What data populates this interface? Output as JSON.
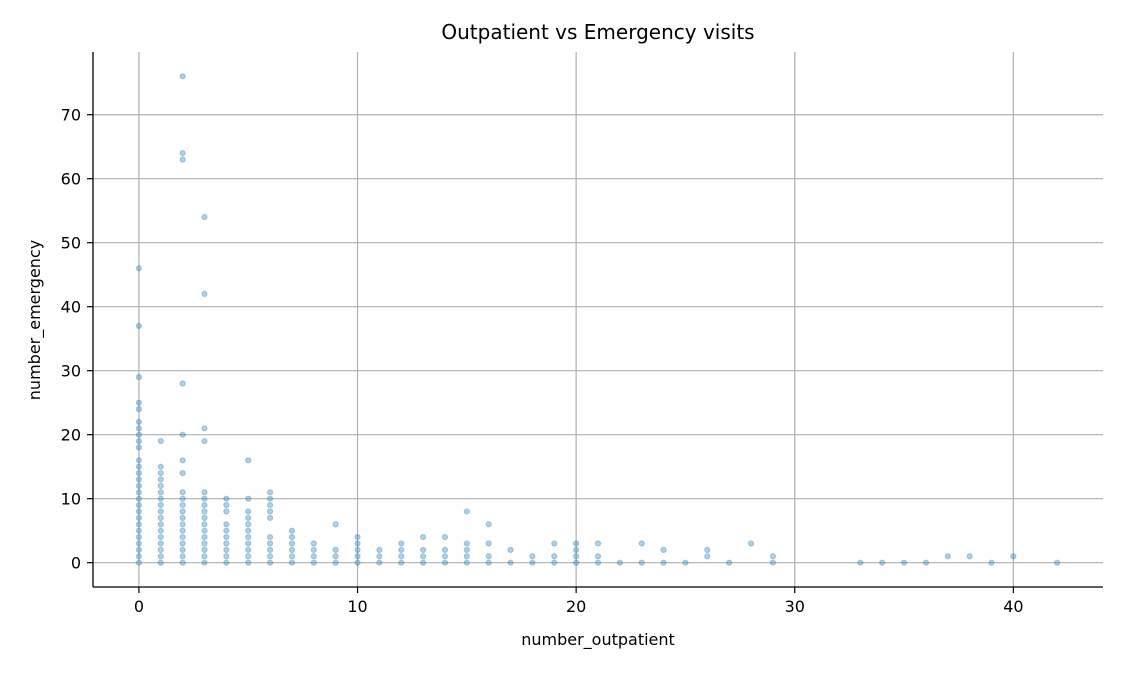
{
  "chart_data": {
    "type": "scatter",
    "title": "Outpatient vs Emergency visits",
    "xlabel": "number_outpatient",
    "ylabel": "number_emergency",
    "xlim": [
      -2.1,
      44.1
    ],
    "ylim": [
      -3.8,
      79.8
    ],
    "xticks": [
      0,
      10,
      20,
      30,
      40
    ],
    "yticks": [
      0,
      10,
      20,
      30,
      40,
      50,
      60,
      70
    ],
    "grid": true,
    "point_color": "#1f77b4",
    "point_alpha": 0.35,
    "series": [
      {
        "points": [
          [
            0,
            0
          ],
          [
            0,
            1
          ],
          [
            0,
            2
          ],
          [
            0,
            3
          ],
          [
            0,
            4
          ],
          [
            0,
            5
          ],
          [
            0,
            6
          ],
          [
            0,
            7
          ],
          [
            0,
            8
          ],
          [
            0,
            9
          ],
          [
            0,
            10
          ],
          [
            0,
            11
          ],
          [
            0,
            12
          ],
          [
            0,
            13
          ],
          [
            0,
            14
          ],
          [
            0,
            15
          ],
          [
            0,
            16
          ],
          [
            0,
            18
          ],
          [
            0,
            19
          ],
          [
            0,
            20
          ],
          [
            0,
            21
          ],
          [
            0,
            22
          ],
          [
            0,
            24
          ],
          [
            0,
            25
          ],
          [
            0,
            29
          ],
          [
            0,
            37
          ],
          [
            0,
            46
          ],
          [
            1,
            0
          ],
          [
            1,
            1
          ],
          [
            1,
            2
          ],
          [
            1,
            3
          ],
          [
            1,
            4
          ],
          [
            1,
            5
          ],
          [
            1,
            6
          ],
          [
            1,
            7
          ],
          [
            1,
            8
          ],
          [
            1,
            9
          ],
          [
            1,
            10
          ],
          [
            1,
            11
          ],
          [
            1,
            12
          ],
          [
            1,
            13
          ],
          [
            1,
            14
          ],
          [
            1,
            15
          ],
          [
            1,
            19
          ],
          [
            2,
            0
          ],
          [
            2,
            1
          ],
          [
            2,
            2
          ],
          [
            2,
            3
          ],
          [
            2,
            4
          ],
          [
            2,
            5
          ],
          [
            2,
            6
          ],
          [
            2,
            7
          ],
          [
            2,
            8
          ],
          [
            2,
            9
          ],
          [
            2,
            10
          ],
          [
            2,
            11
          ],
          [
            2,
            14
          ],
          [
            2,
            16
          ],
          [
            2,
            20
          ],
          [
            2,
            28
          ],
          [
            2,
            63
          ],
          [
            2,
            64
          ],
          [
            2,
            76
          ],
          [
            3,
            0
          ],
          [
            3,
            1
          ],
          [
            3,
            2
          ],
          [
            3,
            3
          ],
          [
            3,
            4
          ],
          [
            3,
            5
          ],
          [
            3,
            6
          ],
          [
            3,
            7
          ],
          [
            3,
            8
          ],
          [
            3,
            9
          ],
          [
            3,
            10
          ],
          [
            3,
            11
          ],
          [
            3,
            19
          ],
          [
            3,
            21
          ],
          [
            3,
            42
          ],
          [
            3,
            54
          ],
          [
            4,
            0
          ],
          [
            4,
            1
          ],
          [
            4,
            2
          ],
          [
            4,
            3
          ],
          [
            4,
            4
          ],
          [
            4,
            5
          ],
          [
            4,
            6
          ],
          [
            4,
            8
          ],
          [
            4,
            9
          ],
          [
            4,
            10
          ],
          [
            5,
            0
          ],
          [
            5,
            1
          ],
          [
            5,
            2
          ],
          [
            5,
            3
          ],
          [
            5,
            4
          ],
          [
            5,
            5
          ],
          [
            5,
            6
          ],
          [
            5,
            7
          ],
          [
            5,
            8
          ],
          [
            5,
            10
          ],
          [
            5,
            16
          ],
          [
            6,
            0
          ],
          [
            6,
            1
          ],
          [
            6,
            2
          ],
          [
            6,
            3
          ],
          [
            6,
            4
          ],
          [
            6,
            7
          ],
          [
            6,
            8
          ],
          [
            6,
            9
          ],
          [
            6,
            10
          ],
          [
            6,
            11
          ],
          [
            7,
            0
          ],
          [
            7,
            1
          ],
          [
            7,
            2
          ],
          [
            7,
            3
          ],
          [
            7,
            4
          ],
          [
            7,
            5
          ],
          [
            8,
            0
          ],
          [
            8,
            1
          ],
          [
            8,
            2
          ],
          [
            8,
            3
          ],
          [
            9,
            0
          ],
          [
            9,
            1
          ],
          [
            9,
            2
          ],
          [
            9,
            6
          ],
          [
            10,
            0
          ],
          [
            10,
            1
          ],
          [
            10,
            2
          ],
          [
            10,
            3
          ],
          [
            10,
            4
          ],
          [
            11,
            0
          ],
          [
            11,
            1
          ],
          [
            11,
            2
          ],
          [
            12,
            0
          ],
          [
            12,
            1
          ],
          [
            12,
            2
          ],
          [
            12,
            3
          ],
          [
            13,
            0
          ],
          [
            13,
            1
          ],
          [
            13,
            2
          ],
          [
            13,
            4
          ],
          [
            14,
            0
          ],
          [
            14,
            1
          ],
          [
            14,
            2
          ],
          [
            14,
            4
          ],
          [
            15,
            0
          ],
          [
            15,
            1
          ],
          [
            15,
            2
          ],
          [
            15,
            3
          ],
          [
            15,
            8
          ],
          [
            16,
            0
          ],
          [
            16,
            1
          ],
          [
            16,
            3
          ],
          [
            16,
            6
          ],
          [
            17,
            0
          ],
          [
            17,
            2
          ],
          [
            18,
            0
          ],
          [
            18,
            1
          ],
          [
            19,
            0
          ],
          [
            19,
            1
          ],
          [
            19,
            3
          ],
          [
            20,
            0
          ],
          [
            20,
            1
          ],
          [
            20,
            2
          ],
          [
            20,
            3
          ],
          [
            21,
            0
          ],
          [
            21,
            1
          ],
          [
            21,
            3
          ],
          [
            22,
            0
          ],
          [
            23,
            0
          ],
          [
            23,
            3
          ],
          [
            24,
            0
          ],
          [
            24,
            2
          ],
          [
            25,
            0
          ],
          [
            26,
            1
          ],
          [
            26,
            2
          ],
          [
            27,
            0
          ],
          [
            28,
            3
          ],
          [
            29,
            0
          ],
          [
            29,
            1
          ],
          [
            33,
            0
          ],
          [
            34,
            0
          ],
          [
            35,
            0
          ],
          [
            36,
            0
          ],
          [
            37,
            1
          ],
          [
            38,
            1
          ],
          [
            39,
            0
          ],
          [
            40,
            1
          ],
          [
            42,
            0
          ]
        ]
      }
    ]
  }
}
